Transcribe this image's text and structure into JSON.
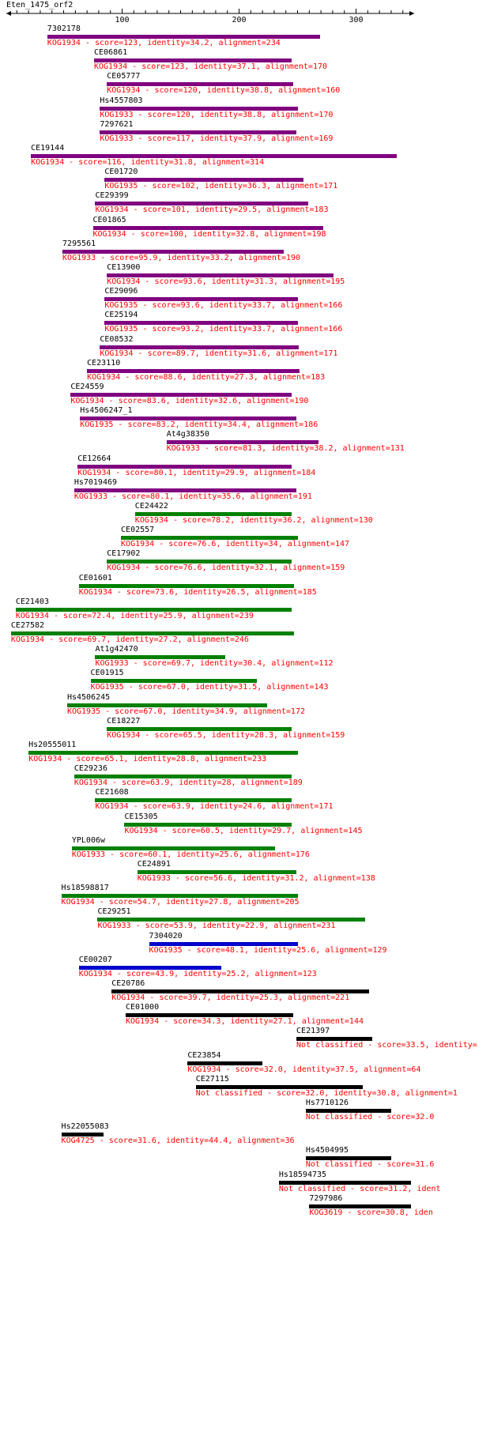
{
  "query_name": "Eten_1475_orf2",
  "axis": {
    "min": 1,
    "max": 347,
    "ticks": [
      100,
      200,
      300
    ]
  },
  "colors": {
    "purple": "#800080",
    "green": "#008000",
    "blue": "#0000cc",
    "black": "#000000",
    "description": "#ff0000"
  },
  "hits": [
    {
      "name": "7302178",
      "desc": "KOG1934 - score=123, identity=34.2, alignment=234",
      "start": 36,
      "end": 269,
      "color": "purple"
    },
    {
      "name": "CE06861",
      "desc": "KOG1934 - score=123, identity=37.1, alignment=170",
      "start": 76,
      "end": 245,
      "color": "purple"
    },
    {
      "name": "CE05777",
      "desc": "KOG1934 - score=120, identity=38.8, alignment=160",
      "start": 87,
      "end": 246,
      "color": "purple"
    },
    {
      "name": "Hs4557803",
      "desc": "KOG1933 - score=120, identity=38.8, alignment=170",
      "start": 81,
      "end": 250,
      "color": "purple"
    },
    {
      "name": "7297621",
      "desc": "KOG1933 - score=117, identity=37.9, alignment=169",
      "start": 81,
      "end": 249,
      "color": "purple"
    },
    {
      "name": "CE19144",
      "desc": "KOG1934 - score=116, identity=31.8, alignment=314",
      "start": 22,
      "end": 335,
      "color": "purple"
    },
    {
      "name": "CE01720",
      "desc": "KOG1935 - score=102, identity=36.3, alignment=171",
      "start": 85,
      "end": 255,
      "color": "purple"
    },
    {
      "name": "CE29399",
      "desc": "KOG1934 - score=101, identity=29.5, alignment=183",
      "start": 77,
      "end": 259,
      "color": "purple"
    },
    {
      "name": "CE01865",
      "desc": "KOG1934 - score=100, identity=32.8, alignment=198",
      "start": 75,
      "end": 272,
      "color": "purple"
    },
    {
      "name": "7295561",
      "desc": "KOG1933 - score=95.9, identity=33.2, alignment=190",
      "start": 49,
      "end": 238,
      "color": "purple"
    },
    {
      "name": "CE13900",
      "desc": "KOG1934 - score=93.6, identity=31.3, alignment=195",
      "start": 87,
      "end": 281,
      "color": "purple"
    },
    {
      "name": "CE29096",
      "desc": "KOG1935 - score=93.6, identity=33.7, alignment=166",
      "start": 85,
      "end": 250,
      "color": "purple"
    },
    {
      "name": "CE25194",
      "desc": "KOG1935 - score=93.2, identity=33.7, alignment=166",
      "start": 85,
      "end": 250,
      "color": "purple"
    },
    {
      "name": "CE08532",
      "desc": "KOG1934 - score=89.7, identity=31.6, alignment=171",
      "start": 81,
      "end": 251,
      "color": "purple"
    },
    {
      "name": "CE23110",
      "desc": "KOG1934 - score=88.6, identity=27.3, alignment=183",
      "start": 70,
      "end": 252,
      "color": "purple"
    },
    {
      "name": "CE24559",
      "desc": "KOG1934 - score=83.6, identity=32.6, alignment=190",
      "start": 56,
      "end": 245,
      "color": "purple"
    },
    {
      "name": "Hs4506247_1",
      "desc": "KOG1935 - score=83.2, identity=34.4, alignment=186",
      "start": 64,
      "end": 249,
      "color": "purple"
    },
    {
      "name": "At4g38350",
      "desc": "KOG1933 - score=81.3, identity=38.2, alignment=131",
      "start": 138,
      "end": 268,
      "color": "purple"
    },
    {
      "name": "CE12664",
      "desc": "KOG1934 - score=80.1, identity=29.9, alignment=184",
      "start": 62,
      "end": 245,
      "color": "purple"
    },
    {
      "name": "Hs7019469",
      "desc": "KOG1933 - score=80.1, identity=35.6, alignment=191",
      "start": 59,
      "end": 249,
      "color": "purple"
    },
    {
      "name": "CE24422",
      "desc": "KOG1934 - score=78.2, identity=36.2, alignment=130",
      "start": 111,
      "end": 245,
      "color": "green"
    },
    {
      "name": "CE02557",
      "desc": "KOG1934 - score=76.6, identity=34, alignment=147",
      "start": 99,
      "end": 250,
      "color": "green"
    },
    {
      "name": "CE17902",
      "desc": "KOG1934 - score=76.6, identity=32.1, alignment=159",
      "start": 87,
      "end": 245,
      "color": "green"
    },
    {
      "name": "CE01601",
      "desc": "KOG1934 - score=73.6, identity=26.5, alignment=185",
      "start": 63,
      "end": 247,
      "color": "green"
    },
    {
      "name": "CE21403",
      "desc": "KOG1934 - score=72.4, identity=25.9, alignment=239",
      "start": 9,
      "end": 245,
      "color": "green"
    },
    {
      "name": "CE27582",
      "desc": "KOG1934 - score=69.7, identity=27.2, alignment=246",
      "start": 5,
      "end": 247,
      "color": "green"
    },
    {
      "name": "At1g42470",
      "desc": "KOG1933 - score=69.7, identity=30.4, alignment=112",
      "start": 77,
      "end": 188,
      "color": "green"
    },
    {
      "name": "CE01915",
      "desc": "KOG1935 - score=67.0, identity=31.5, alignment=143",
      "start": 73,
      "end": 215,
      "color": "green"
    },
    {
      "name": "Hs4506245",
      "desc": "KOG1935 - score=67.0, identity=34.9, alignment=172",
      "start": 53,
      "end": 224,
      "color": "green"
    },
    {
      "name": "CE18227",
      "desc": "KOG1934 - score=65.5, identity=28.3, alignment=159",
      "start": 87,
      "end": 245,
      "color": "green"
    },
    {
      "name": "Hs20555011",
      "desc": "KOG1934 - score=65.1, identity=28.8, alignment=233",
      "start": 20,
      "end": 250,
      "color": "green"
    },
    {
      "name": "CE29236",
      "desc": "KOG1934 - score=63.9, identity=28, alignment=189",
      "start": 59,
      "end": 245,
      "color": "green"
    },
    {
      "name": "CE21608",
      "desc": "KOG1934 - score=63.9, identity=24.6, alignment=171",
      "start": 77,
      "end": 245,
      "color": "green"
    },
    {
      "name": "CE15305",
      "desc": "KOG1934 - score=60.5, identity=29.7, alignment=145",
      "start": 102,
      "end": 245,
      "color": "green"
    },
    {
      "name": "YPL006w",
      "desc": "KOG1933 - score=60.1, identity=25.6, alignment=176",
      "start": 57,
      "end": 231,
      "color": "green"
    },
    {
      "name": "CE24891",
      "desc": "KOG1933 - score=56.6, identity=31.2, alignment=138",
      "start": 113,
      "end": 249,
      "color": "green"
    },
    {
      "name": "Hs18598817",
      "desc": "KOG1934 - score=54.7, identity=27.8, alignment=205",
      "start": 48,
      "end": 250,
      "color": "green"
    },
    {
      "name": "CE29251",
      "desc": "KOG1933 - score=53.9, identity=22.9, alignment=231",
      "start": 79,
      "end": 308,
      "color": "green"
    },
    {
      "name": "7304020",
      "desc": "KOG1935 - score=48.1, identity=25.6, alignment=129",
      "start": 123,
      "end": 250,
      "color": "blue"
    },
    {
      "name": "CE00207",
      "desc": "KOG1934 - score=43.9, identity=25.2, alignment=123",
      "start": 63,
      "end": 185,
      "color": "blue"
    },
    {
      "name": "CE20786",
      "desc": "KOG1934 - score=39.7, identity=25.3, alignment=221",
      "start": 91,
      "end": 311,
      "color": "black"
    },
    {
      "name": "CE01000",
      "desc": "KOG1934 - score=34.3, identity=27.1, alignment=144",
      "start": 103,
      "end": 246,
      "color": "black"
    },
    {
      "name": "CE21397",
      "desc": "Not classified - score=33.5, identity=",
      "start": 249,
      "end": 314,
      "color": "black"
    },
    {
      "name": "CE23854",
      "desc": "KOG1934 - score=32.0, identity=37.5, alignment=64",
      "start": 156,
      "end": 220,
      "color": "black"
    },
    {
      "name": "CE27115",
      "desc": "Not classified - score=32.0, identity=30.8, alignment=1",
      "start": 163,
      "end": 306,
      "color": "black"
    },
    {
      "name": "Hs7710126",
      "desc": "Not classified - score=32.0",
      "start": 257,
      "end": 330,
      "color": "black"
    },
    {
      "name": "Hs22055083",
      "desc": "KOG4725 - score=31.6, identity=44.4, alignment=36",
      "start": 48,
      "end": 84,
      "color": "black"
    },
    {
      "name": "Hs4504995",
      "desc": "Not classified - score=31.6",
      "start": 257,
      "end": 330,
      "color": "black"
    },
    {
      "name": "Hs18594735",
      "desc": "Not classified - score=31.2, ident",
      "start": 234,
      "end": 347,
      "color": "black"
    },
    {
      "name": "7297986",
      "desc": "KOG3619 - score=30.8, iden",
      "start": 260,
      "end": 347,
      "color": "black"
    }
  ]
}
